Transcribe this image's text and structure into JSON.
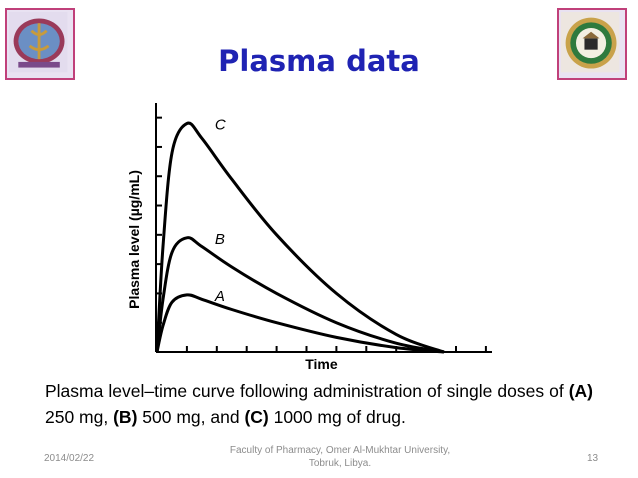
{
  "slide": {
    "title": "Plasma data",
    "footer": {
      "date": "2014/02/22",
      "center_line1": "Faculty of Pharmacy, Omer Al-Mukhtar University,",
      "center_line2": "Tobruk, Libya.",
      "page": "13"
    },
    "caption": {
      "intro": "Plasma level–time curve following administration of single doses of ",
      "a_label": "(A)",
      "a_dose": " 250 mg, ",
      "b_label": "(B)",
      "b_dose": " 500 mg, and ",
      "c_label": "(C)",
      "c_dose": " 1000 mg of drug."
    },
    "logos": [
      "faculty-emblem",
      "university-seal"
    ]
  },
  "chart_data": {
    "type": "line",
    "xlabel": "Time",
    "ylabel": "Plasma level (µg/mL)",
    "xlim": [
      0,
      10
    ],
    "ylim": [
      0,
      8.5
    ],
    "grid": false,
    "series": [
      {
        "name": "A",
        "x": [
          0,
          0.2,
          0.5,
          1.0,
          1.5,
          2.5,
          4,
          6,
          8,
          9.6
        ],
        "values": [
          0,
          0.9,
          1.7,
          1.95,
          1.8,
          1.45,
          1.0,
          0.5,
          0.15,
          0
        ]
      },
      {
        "name": "B",
        "x": [
          0,
          0.2,
          0.5,
          1.0,
          1.5,
          2.5,
          4,
          6,
          8,
          9.6
        ],
        "values": [
          0,
          1.8,
          3.4,
          3.9,
          3.6,
          2.9,
          2.0,
          1.0,
          0.3,
          0
        ]
      },
      {
        "name": "C",
        "x": [
          0,
          0.2,
          0.5,
          1.0,
          1.5,
          2.5,
          4,
          6,
          8,
          9.6
        ],
        "values": [
          0,
          3.6,
          6.8,
          7.8,
          7.3,
          5.9,
          4.0,
          2.0,
          0.6,
          0
        ]
      }
    ],
    "colors": {
      "line": "#000000",
      "title": "#1f23b3",
      "footer": "#8c8c8c"
    }
  }
}
